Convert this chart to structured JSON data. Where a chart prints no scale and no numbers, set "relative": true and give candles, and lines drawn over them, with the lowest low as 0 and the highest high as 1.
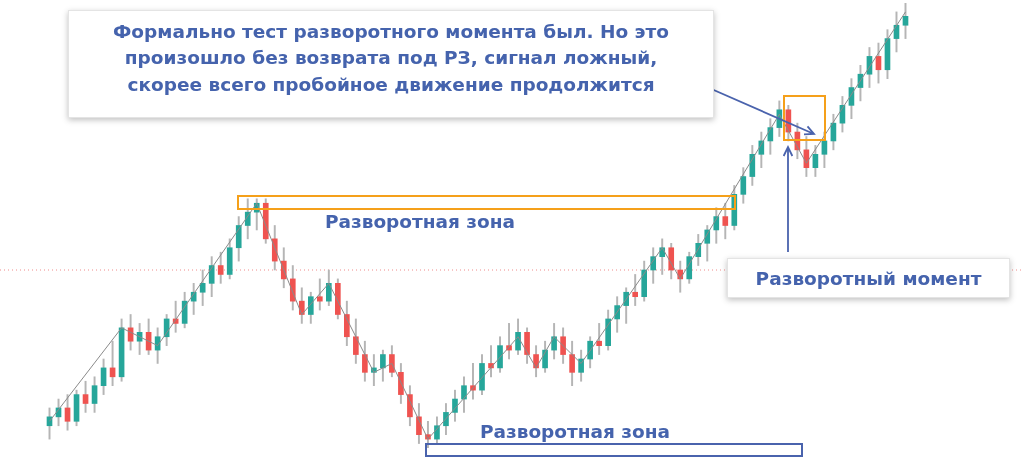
{
  "chart_data": {
    "type": "candlestick",
    "relative": true,
    "categories": [
      null,
      null,
      null,
      null,
      null,
      null,
      null,
      null,
      null,
      null,
      null,
      null,
      null,
      null,
      null,
      null,
      null,
      null,
      null,
      null,
      null,
      null,
      null,
      null,
      null,
      null,
      null,
      null,
      null,
      null,
      null,
      null,
      null,
      null,
      null,
      null,
      null,
      null,
      null,
      null,
      null,
      null,
      null,
      null,
      null,
      null,
      null,
      null,
      null,
      null,
      null,
      null,
      null,
      null,
      null,
      null,
      null,
      null,
      null,
      null,
      null,
      null,
      null,
      null,
      null,
      null,
      null,
      null,
      null,
      null,
      null,
      null,
      null,
      null,
      null,
      null,
      null,
      null,
      null,
      null,
      null,
      null,
      null,
      null,
      null,
      null,
      null,
      null,
      null,
      null,
      null,
      null,
      null,
      null,
      null,
      null
    ],
    "ohlc": [
      [
        0.05,
        0.09,
        0.02,
        0.07
      ],
      [
        0.07,
        0.11,
        0.05,
        0.09
      ],
      [
        0.09,
        0.12,
        0.04,
        0.06
      ],
      [
        0.06,
        0.13,
        0.05,
        0.12
      ],
      [
        0.12,
        0.15,
        0.08,
        0.1
      ],
      [
        0.1,
        0.16,
        0.08,
        0.14
      ],
      [
        0.14,
        0.2,
        0.12,
        0.18
      ],
      [
        0.18,
        0.24,
        0.14,
        0.16
      ],
      [
        0.16,
        0.29,
        0.15,
        0.27
      ],
      [
        0.27,
        0.3,
        0.22,
        0.24
      ],
      [
        0.24,
        0.28,
        0.21,
        0.26
      ],
      [
        0.26,
        0.29,
        0.21,
        0.22
      ],
      [
        0.22,
        0.27,
        0.19,
        0.25
      ],
      [
        0.25,
        0.3,
        0.23,
        0.29
      ],
      [
        0.29,
        0.33,
        0.26,
        0.28
      ],
      [
        0.28,
        0.35,
        0.27,
        0.33
      ],
      [
        0.33,
        0.37,
        0.3,
        0.35
      ],
      [
        0.35,
        0.4,
        0.32,
        0.37
      ],
      [
        0.37,
        0.43,
        0.34,
        0.41
      ],
      [
        0.41,
        0.44,
        0.37,
        0.39
      ],
      [
        0.39,
        0.47,
        0.38,
        0.45
      ],
      [
        0.45,
        0.52,
        0.42,
        0.5
      ],
      [
        0.5,
        0.56,
        0.47,
        0.53
      ],
      [
        0.53,
        0.56,
        0.49,
        0.55
      ],
      [
        0.55,
        0.56,
        0.46,
        0.47
      ],
      [
        0.47,
        0.5,
        0.4,
        0.42
      ],
      [
        0.42,
        0.45,
        0.36,
        0.38
      ],
      [
        0.38,
        0.41,
        0.31,
        0.33
      ],
      [
        0.33,
        0.36,
        0.28,
        0.3
      ],
      [
        0.3,
        0.35,
        0.28,
        0.34
      ],
      [
        0.34,
        0.38,
        0.31,
        0.33
      ],
      [
        0.33,
        0.4,
        0.32,
        0.37
      ],
      [
        0.37,
        0.38,
        0.29,
        0.3
      ],
      [
        0.3,
        0.33,
        0.23,
        0.25
      ],
      [
        0.25,
        0.29,
        0.19,
        0.21
      ],
      [
        0.21,
        0.24,
        0.15,
        0.17
      ],
      [
        0.17,
        0.21,
        0.14,
        0.18
      ],
      [
        0.18,
        0.22,
        0.15,
        0.21
      ],
      [
        0.21,
        0.23,
        0.16,
        0.17
      ],
      [
        0.17,
        0.19,
        0.1,
        0.12
      ],
      [
        0.12,
        0.14,
        0.05,
        0.07
      ],
      [
        0.07,
        0.1,
        0.01,
        0.03
      ],
      [
        0.03,
        0.06,
        0.0,
        0.02
      ],
      [
        0.02,
        0.07,
        0.01,
        0.05
      ],
      [
        0.05,
        0.1,
        0.03,
        0.08
      ],
      [
        0.08,
        0.13,
        0.06,
        0.11
      ],
      [
        0.11,
        0.16,
        0.08,
        0.14
      ],
      [
        0.14,
        0.19,
        0.11,
        0.13
      ],
      [
        0.13,
        0.21,
        0.12,
        0.19
      ],
      [
        0.19,
        0.23,
        0.16,
        0.18
      ],
      [
        0.18,
        0.25,
        0.17,
        0.23
      ],
      [
        0.23,
        0.28,
        0.2,
        0.22
      ],
      [
        0.22,
        0.29,
        0.21,
        0.26
      ],
      [
        0.26,
        0.27,
        0.19,
        0.21
      ],
      [
        0.21,
        0.23,
        0.16,
        0.18
      ],
      [
        0.18,
        0.24,
        0.17,
        0.22
      ],
      [
        0.22,
        0.28,
        0.2,
        0.25
      ],
      [
        0.25,
        0.27,
        0.19,
        0.21
      ],
      [
        0.21,
        0.24,
        0.14,
        0.17
      ],
      [
        0.17,
        0.22,
        0.15,
        0.2
      ],
      [
        0.2,
        0.25,
        0.18,
        0.24
      ],
      [
        0.24,
        0.28,
        0.21,
        0.23
      ],
      [
        0.23,
        0.31,
        0.22,
        0.29
      ],
      [
        0.29,
        0.34,
        0.26,
        0.32
      ],
      [
        0.32,
        0.36,
        0.28,
        0.35
      ],
      [
        0.35,
        0.39,
        0.32,
        0.34
      ],
      [
        0.34,
        0.42,
        0.33,
        0.4
      ],
      [
        0.4,
        0.45,
        0.37,
        0.43
      ],
      [
        0.43,
        0.47,
        0.39,
        0.45
      ],
      [
        0.45,
        0.46,
        0.38,
        0.4
      ],
      [
        0.4,
        0.42,
        0.35,
        0.38
      ],
      [
        0.38,
        0.44,
        0.37,
        0.43
      ],
      [
        0.43,
        0.48,
        0.41,
        0.46
      ],
      [
        0.46,
        0.5,
        0.42,
        0.49
      ],
      [
        0.49,
        0.54,
        0.46,
        0.52
      ],
      [
        0.52,
        0.55,
        0.47,
        0.5
      ],
      [
        0.5,
        0.59,
        0.49,
        0.57
      ],
      [
        0.57,
        0.63,
        0.55,
        0.61
      ],
      [
        0.61,
        0.68,
        0.59,
        0.66
      ],
      [
        0.66,
        0.71,
        0.63,
        0.69
      ],
      [
        0.69,
        0.74,
        0.66,
        0.72
      ],
      [
        0.72,
        0.78,
        0.7,
        0.76
      ],
      [
        0.76,
        0.77,
        0.69,
        0.71
      ],
      [
        0.71,
        0.73,
        0.65,
        0.67
      ],
      [
        0.67,
        0.7,
        0.61,
        0.63
      ],
      [
        0.63,
        0.68,
        0.61,
        0.66
      ],
      [
        0.66,
        0.71,
        0.63,
        0.69
      ],
      [
        0.69,
        0.75,
        0.67,
        0.73
      ],
      [
        0.73,
        0.79,
        0.71,
        0.77
      ],
      [
        0.77,
        0.83,
        0.74,
        0.81
      ],
      [
        0.81,
        0.86,
        0.78,
        0.84
      ],
      [
        0.84,
        0.9,
        0.81,
        0.88
      ],
      [
        0.88,
        0.91,
        0.82,
        0.85
      ],
      [
        0.85,
        0.94,
        0.83,
        0.92
      ],
      [
        0.92,
        0.98,
        0.89,
        0.95
      ],
      [
        0.95,
        1.0,
        0.92,
        0.97
      ]
    ],
    "series": [
      {
        "type": "line",
        "color": "#8a8a8a",
        "values": [
          0.06,
          null,
          null,
          null,
          null,
          null,
          null,
          null,
          0.27,
          null,
          null,
          null,
          0.23,
          null,
          null,
          null,
          null,
          null,
          null,
          null,
          null,
          null,
          null,
          0.55,
          null,
          null,
          null,
          null,
          0.3,
          null,
          null,
          0.37,
          null,
          null,
          null,
          null,
          0.17,
          null,
          0.19,
          null,
          null,
          null,
          0.02,
          null,
          null,
          null,
          null,
          null,
          null,
          null,
          null,
          null,
          0.25,
          null,
          0.18,
          null,
          0.25,
          null,
          null,
          0.19,
          null,
          null,
          null,
          null,
          null,
          null,
          null,
          null,
          0.45,
          null,
          0.38,
          null,
          null,
          null,
          null,
          null,
          null,
          null,
          null,
          null,
          null,
          0.75,
          null,
          null,
          0.64,
          null,
          null,
          null,
          null,
          null,
          null,
          null,
          null,
          null,
          null,
          0.98
        ]
      }
    ],
    "colors": [
      "#26a69a",
      "#26a69a",
      "#ef5350",
      "#26a69a",
      "#ef5350",
      "#26a69a",
      "#26a69a",
      "#ef5350",
      "#26a69a",
      "#ef5350",
      "#26a69a",
      "#ef5350",
      "#26a69a",
      "#26a69a",
      "#ef5350",
      "#26a69a",
      "#26a69a",
      "#26a69a",
      "#26a69a",
      "#ef5350",
      "#26a69a",
      "#26a69a",
      "#26a69a",
      "#26a69a",
      "#ef5350",
      "#ef5350",
      "#ef5350",
      "#ef5350",
      "#ef5350",
      "#26a69a",
      "#ef5350",
      "#26a69a",
      "#ef5350",
      "#ef5350",
      "#ef5350",
      "#ef5350",
      "#26a69a",
      "#26a69a",
      "#ef5350",
      "#ef5350",
      "#ef5350",
      "#ef5350",
      "#ef5350",
      "#26a69a",
      "#26a69a",
      "#26a69a",
      "#26a69a",
      "#ef5350",
      "#26a69a",
      "#ef5350",
      "#26a69a",
      "#ef5350",
      "#26a69a",
      "#ef5350",
      "#ef5350",
      "#26a69a",
      "#26a69a",
      "#ef5350",
      "#ef5350",
      "#26a69a",
      "#26a69a",
      "#ef5350",
      "#26a69a",
      "#26a69a",
      "#26a69a",
      "#ef5350",
      "#26a69a",
      "#26a69a",
      "#26a69a",
      "#ef5350",
      "#ef5350",
      "#26a69a",
      "#26a69a",
      "#26a69a",
      "#26a69a",
      "#ef5350",
      "#26a69a",
      "#26a69a",
      "#26a69a",
      "#26a69a",
      "#26a69a",
      "#26a69a",
      "#ef5350",
      "#ef5350",
      "#ef5350",
      "#26a69a",
      "#26a69a",
      "#26a69a",
      "#26a69a",
      "#26a69a",
      "#26a69a",
      "#26a69a",
      "#ef5350",
      "#26a69a",
      "#26a69a",
      "#26a69a"
    ],
    "ref_lines": [
      {
        "axis": "y",
        "value": 0.4,
        "color": "#f08a8a",
        "line_style": "dotted"
      }
    ],
    "annotations": [
      "Формально тест разворотного момента был. Но это\nпроизошло без возврата под РЗ, сигнал ложный,\nскорее всего пробойное движение продолжится",
      "Разворотная зона",
      "Разворотная зона",
      "Разворотный момент"
    ],
    "legend": false
  }
}
